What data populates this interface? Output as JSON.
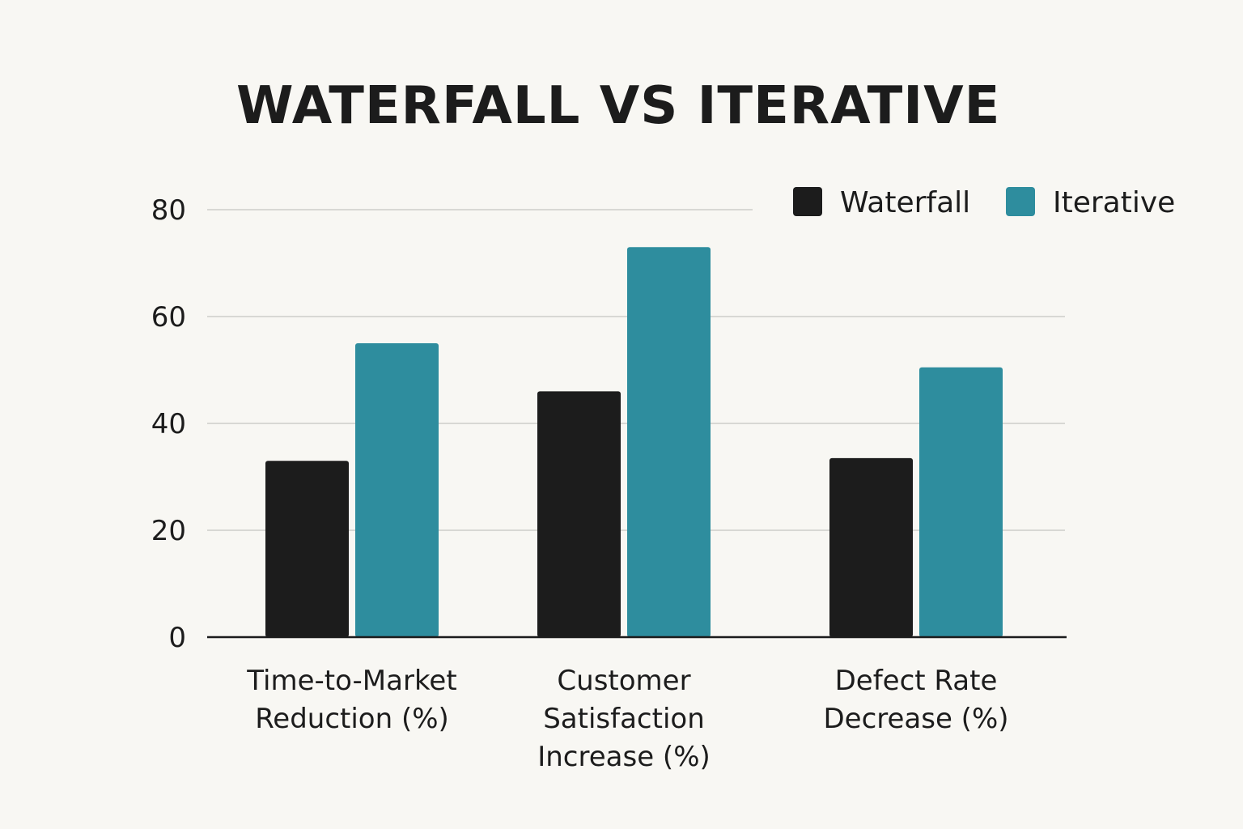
{
  "chart_data": {
    "type": "bar",
    "title": "WATERFALL VS ITERATIVE",
    "categories": [
      [
        "Time-to-Market",
        "Reduction (%)"
      ],
      [
        "Customer",
        "Satisfaction",
        "Increase (%)"
      ],
      [
        "Defect Rate",
        "Decrease (%)"
      ]
    ],
    "series": [
      {
        "name": "Waterfall",
        "color": "#1c1c1c",
        "values": [
          33,
          46,
          33.5
        ]
      },
      {
        "name": "Iterative",
        "color": "#2e8d9e",
        "values": [
          55,
          73,
          50.5
        ]
      }
    ],
    "ylim": [
      0,
      80
    ],
    "yticks": [
      0,
      20,
      40,
      60,
      80
    ],
    "grid": true,
    "legend_position": "top-right",
    "xlabel": "",
    "ylabel": ""
  }
}
